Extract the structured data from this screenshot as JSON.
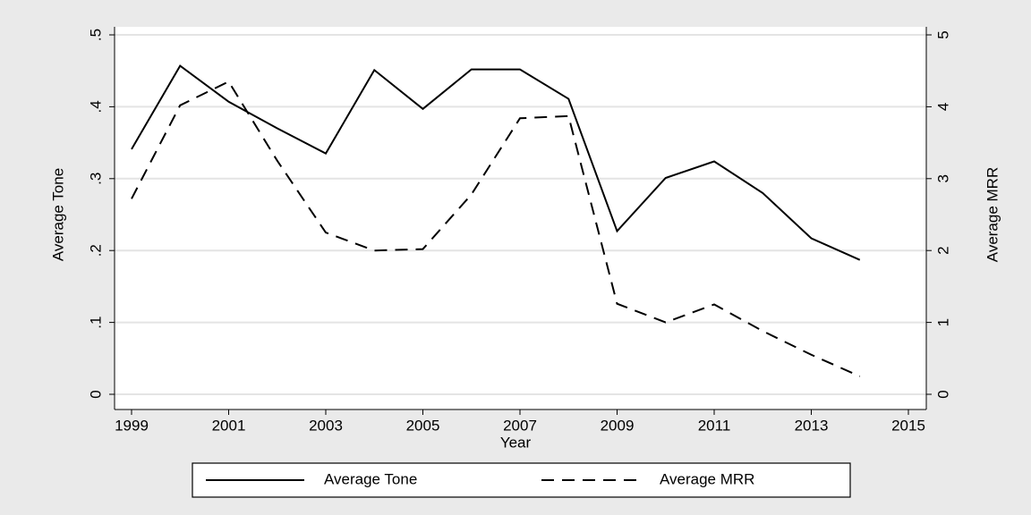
{
  "chart_data": {
    "type": "line",
    "x_label": "Year",
    "y_label": "Average Tone",
    "y2_label": "Average MRR",
    "x": [
      1999,
      2000,
      2001,
      2002,
      2003,
      2004,
      2005,
      2006,
      2007,
      2008,
      2009,
      2010,
      2011,
      2012,
      2013,
      2014
    ],
    "series": [
      {
        "name": "Average Tone",
        "color": "#000000",
        "style": "solid",
        "values": [
          0.341,
          0.457,
          0.407,
          0.37,
          0.335,
          0.451,
          0.397,
          0.452,
          0.452,
          0.411,
          0.227,
          0.301,
          0.324,
          0.28,
          0.217,
          0.187
        ]
      },
      {
        "name": "Average MRR",
        "color": "#000000",
        "style": "dashed",
        "axis": "y2",
        "values": [
          2.72,
          4.02,
          4.35,
          3.25,
          2.25,
          2.0,
          2.02,
          2.78,
          3.84,
          3.87,
          1.26,
          1.0,
          1.25,
          0.88,
          0.55,
          0.25
        ]
      }
    ],
    "xlim": [
      1999,
      2015
    ],
    "xticks": [
      1999,
      2001,
      2003,
      2005,
      2007,
      2009,
      2011,
      2013,
      2015
    ],
    "ylim": [
      0,
      0.5
    ],
    "yticks": [
      0,
      {
        "value": 0.1,
        "label": ".1"
      },
      {
        "value": 0.2,
        "label": ".2"
      },
      {
        "value": 0.3,
        "label": ".3"
      },
      {
        "value": 0.4,
        "label": ".4"
      },
      {
        "value": 0.5,
        "label": ".5"
      }
    ],
    "y2lim": [
      0,
      5
    ],
    "y2ticks": [
      0,
      1,
      2,
      3,
      4,
      5
    ],
    "grid": true,
    "legend": "bottom"
  }
}
